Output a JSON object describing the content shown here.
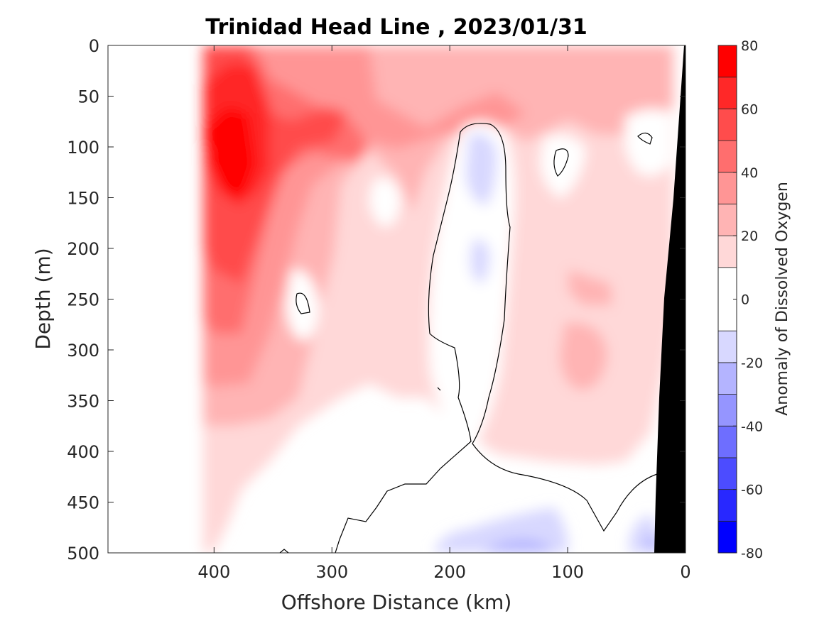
{
  "chart_data": {
    "type": "heatmap",
    "title": "Trinidad Head Line , 2023/01/31",
    "xlabel": "Offshore Distance (km)",
    "ylabel": "Depth (m)",
    "colorbar_label": "Anomaly of Dissolved Oxygen",
    "xlim": [
      490,
      0
    ],
    "ylim": [
      500,
      0
    ],
    "x_ticks": [
      400,
      300,
      200,
      100,
      0
    ],
    "y_ticks": [
      0,
      50,
      100,
      150,
      200,
      250,
      300,
      350,
      400,
      450,
      500
    ],
    "colorbar_ticks": [
      80,
      60,
      40,
      20,
      0,
      -20,
      -40,
      -60,
      -80
    ],
    "colorbar_range": [
      -80,
      80
    ],
    "levels": [
      -80,
      -70,
      -60,
      -50,
      -40,
      -30,
      -20,
      -10,
      10,
      20,
      30,
      40,
      50,
      60,
      70,
      80
    ],
    "level_colors": {
      "above_70": "#ff0000",
      "60_70": "#ff2828",
      "50_60": "#ff4c4c",
      "40_50": "#ff6e6e",
      "30_40": "#ff9595",
      "20_30": "#ffb4b4",
      "10_20": "#ffd8d8",
      "-10_10": "#ffffff",
      "-20_-10": "#d8d8ff",
      "-30_-20": "#b4b4ff",
      "-40_-30": "#9595ff",
      "-50_-40": "#6e6eff",
      "-60_-50": "#4c4cff",
      "-70_-60": "#2828ff",
      "below_-70": "#0000ff"
    },
    "data_extent_km": [
      410,
      0
    ],
    "bathymetry_color": "#000000",
    "zero_contour": true,
    "grid": false
  }
}
